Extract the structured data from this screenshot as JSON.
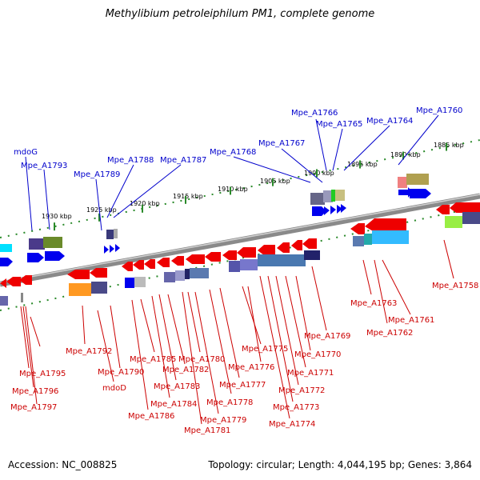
{
  "title": "Methylibium petroleiphilum PM1, complete genome",
  "footer": {
    "accession": "Accession: NC_008825",
    "info": "Topology: circular; Length: 4,044,195 bp; Genes: 3,864"
  },
  "colors": {
    "forward_arrow": "#0000ee",
    "reverse_arrow": "#ee0000",
    "forward_label": "#0000cc",
    "reverse_label": "#cc0000",
    "tick": "#2a8a2a",
    "backbone": "#777777"
  },
  "ticks": [
    "1930 kbp",
    "1925 kbp",
    "1920 kbp",
    "1915 kbp",
    "1910 kbp",
    "1905 kbp",
    "1900 kbp",
    "1895 kbp",
    "1890 kbp",
    "1885 kbp"
  ],
  "forward_labels": [
    "mdoG",
    "Mpe_A1793",
    "Mpe_A1789",
    "Mpe_A1788",
    "Mpe_A1787",
    "Mpe_A1768",
    "Mpe_A1767",
    "Mpe_A1766",
    "Mpe_A1765",
    "Mpe_A1764",
    "Mpe_A1760"
  ],
  "reverse_labels": [
    "Mpe_A1795",
    "Mpe_A1796",
    "Mpe_A1797",
    "Mpe_A1792",
    "Mpe_A1790",
    "mdoD",
    "Mpe_A1786",
    "Mpe_A1785",
    "Mpe_A1784",
    "Mpe_A1783",
    "Mpe_A1782",
    "Mpe_A1781",
    "Mpe_A1780",
    "Mpe_A1779",
    "Mpe_A1778",
    "Mpe_A1777",
    "Mpe_A1776",
    "Mpe_A1775",
    "Mpe_A1774",
    "Mpe_A1773",
    "Mpe_A1772",
    "Mpe_A1771",
    "Mpe_A1770",
    "Mpe_A1769",
    "Mpe_A1763",
    "Mpe_A1762",
    "Mpe_A1761",
    "Mpe_A1758"
  ]
}
